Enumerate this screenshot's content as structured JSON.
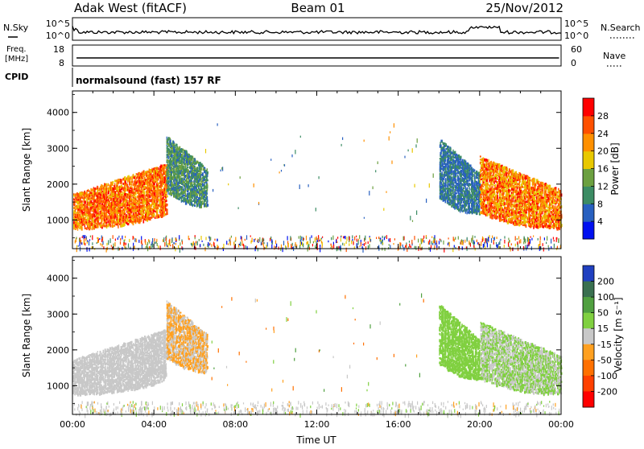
{
  "header": {
    "title": "Adak West (fitACF)",
    "beam": "Beam 01",
    "date": "25/Nov/2012"
  },
  "top_panels": {
    "nsky_label": "N.Sky",
    "nsearch_label": "N.Search",
    "nsky_ticks": [
      "10^5",
      "10^0"
    ],
    "nsearch_ticks": [
      "10^5",
      "10^0"
    ],
    "freq_label_line1": "Freq.",
    "freq_label_line2": "[MHz]",
    "freq_ticks": [
      "18",
      "8"
    ],
    "nave_label": "Nave",
    "nave_ticks": [
      "60",
      "0"
    ],
    "cpid_label": "CPID",
    "cpid_text": "normalsound (fast) 157 RF"
  },
  "chart_data": [
    {
      "type": "heatmap",
      "name": "power",
      "ylabel": "Slant Range [km]",
      "yticks": [
        1000,
        2000,
        3000,
        4000
      ],
      "ylim": [
        200,
        4600
      ],
      "xlim": [
        0,
        24
      ],
      "colorbar_label": "Power [dB]",
      "colorbar_ticks": [
        4,
        8,
        12,
        16,
        20,
        24,
        28
      ],
      "colorbar_range": [
        0,
        32
      ],
      "colorbar_colors": [
        "#0010f0",
        "#2860c0",
        "#3c8c64",
        "#6ca040",
        "#e8c800",
        "#ff9000",
        "#ff5000",
        "#ff0000"
      ],
      "echo_regions": [
        {
          "t": [
            0.0,
            4.6
          ],
          "r": [
            700,
            2600
          ],
          "value_range": [
            18,
            30
          ]
        },
        {
          "t": [
            4.6,
            6.6
          ],
          "r": [
            1300,
            3400
          ],
          "value_range": [
            6,
            16
          ]
        },
        {
          "t": [
            18.0,
            20.0
          ],
          "r": [
            1100,
            3300
          ],
          "value_range": [
            4,
            12
          ]
        },
        {
          "t": [
            20.0,
            24.0
          ],
          "r": [
            700,
            2800
          ],
          "value_range": [
            16,
            30
          ]
        }
      ]
    },
    {
      "type": "heatmap",
      "name": "velocity",
      "ylabel": "Slant Range [km]",
      "yticks": [
        1000,
        2000,
        3000,
        4000
      ],
      "ylim": [
        200,
        4600
      ],
      "xlim": [
        0,
        24
      ],
      "xticks": [
        "00:00",
        "04:00",
        "08:00",
        "12:00",
        "16:00",
        "20:00",
        "00:00"
      ],
      "xlabel": "Time UT",
      "colorbar_label": "Velocity [m s⁻¹]",
      "colorbar_ticks": [
        200,
        100,
        50,
        15,
        -15,
        -50,
        -100,
        -200
      ],
      "colorbar_colors": [
        "#2040c0",
        "#3a7050",
        "#50a040",
        "#80d040",
        "#c8c8c8",
        "#ffa020",
        "#ff7000",
        "#ff4000",
        "#ff0000"
      ],
      "echo_regions": [
        {
          "t": [
            0.0,
            4.6
          ],
          "r": [
            700,
            2600
          ],
          "value_range": [
            -15,
            15
          ]
        },
        {
          "t": [
            4.6,
            6.6
          ],
          "r": [
            1300,
            3400
          ],
          "value_range": [
            -50,
            15
          ]
        },
        {
          "t": [
            18.0,
            20.0
          ],
          "r": [
            1100,
            3300
          ],
          "value_range": [
            15,
            50
          ]
        },
        {
          "t": [
            20.0,
            24.0
          ],
          "r": [
            700,
            2800
          ],
          "value_range": [
            -15,
            50
          ]
        }
      ]
    }
  ]
}
